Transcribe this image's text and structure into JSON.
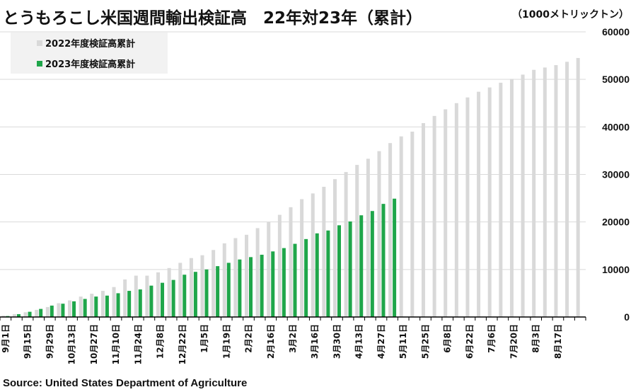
{
  "title": "とうもろこし米国週間輸出検証高　22年対23年（累計）",
  "unit_label": "（1000メトリックトン）",
  "source": "Source: United States Department of Agriculture",
  "colors": {
    "series_2022": "#d9d9d9",
    "series_2023": "#1fa64a",
    "grid": "#d9d9d9",
    "axis": "#000000"
  },
  "chart_data": {
    "type": "bar",
    "title": "とうもろこし米国週間輸出検証高　22年対23年（累計）",
    "ylabel": "（1000メトリックトン）",
    "ylim": [
      0,
      60000
    ],
    "yticks": [
      0,
      10000,
      20000,
      30000,
      40000,
      50000,
      60000
    ],
    "y_tick_labels": [
      "0",
      "10000",
      "20000",
      "30000",
      "40000",
      "50000",
      "60000"
    ],
    "legend_position": "top-left",
    "x_tick_labels": [
      "9月1日",
      "9月15日",
      "9月29日",
      "10月13日",
      "10月27日",
      "11月10日",
      "11月24日",
      "12月8日",
      "12月22日",
      "1月5日",
      "1月19日",
      "2月2日",
      "2月16日",
      "3月2日",
      "3月16日",
      "3月30日",
      "4月13日",
      "4月27日",
      "5月11日",
      "5月25日",
      "6月8日",
      "6月22日",
      "7月6日",
      "7月20日",
      "8月3日",
      "8月17日"
    ],
    "series": [
      {
        "name": "2022年度検証高累計",
        "values": [
          300,
          600,
          1000,
          1500,
          2100,
          2900,
          3500,
          4300,
          4900,
          5500,
          6300,
          7900,
          8700,
          8700,
          9400,
          10300,
          11400,
          12400,
          13000,
          14100,
          15500,
          16600,
          17300,
          18700,
          20000,
          21500,
          23100,
          24800,
          26000,
          27400,
          29000,
          30500,
          32000,
          33300,
          34900,
          36600,
          38000,
          39000,
          40800,
          42300,
          43700,
          45000,
          46200,
          47400,
          48300,
          49300,
          50100,
          51000,
          52000,
          52500,
          53000,
          53700,
          54500
        ]
      },
      {
        "name": "2023年度検証高累計",
        "values": [
          200,
          600,
          1100,
          1700,
          2400,
          2800,
          3300,
          3800,
          4300,
          4500,
          5000,
          5500,
          5800,
          6600,
          7200,
          7800,
          8900,
          9500,
          10000,
          10700,
          11400,
          12100,
          12600,
          13100,
          13800,
          14500,
          15400,
          16400,
          17600,
          18200,
          19300,
          20100,
          21400,
          22300,
          23800,
          24900
        ]
      }
    ]
  }
}
